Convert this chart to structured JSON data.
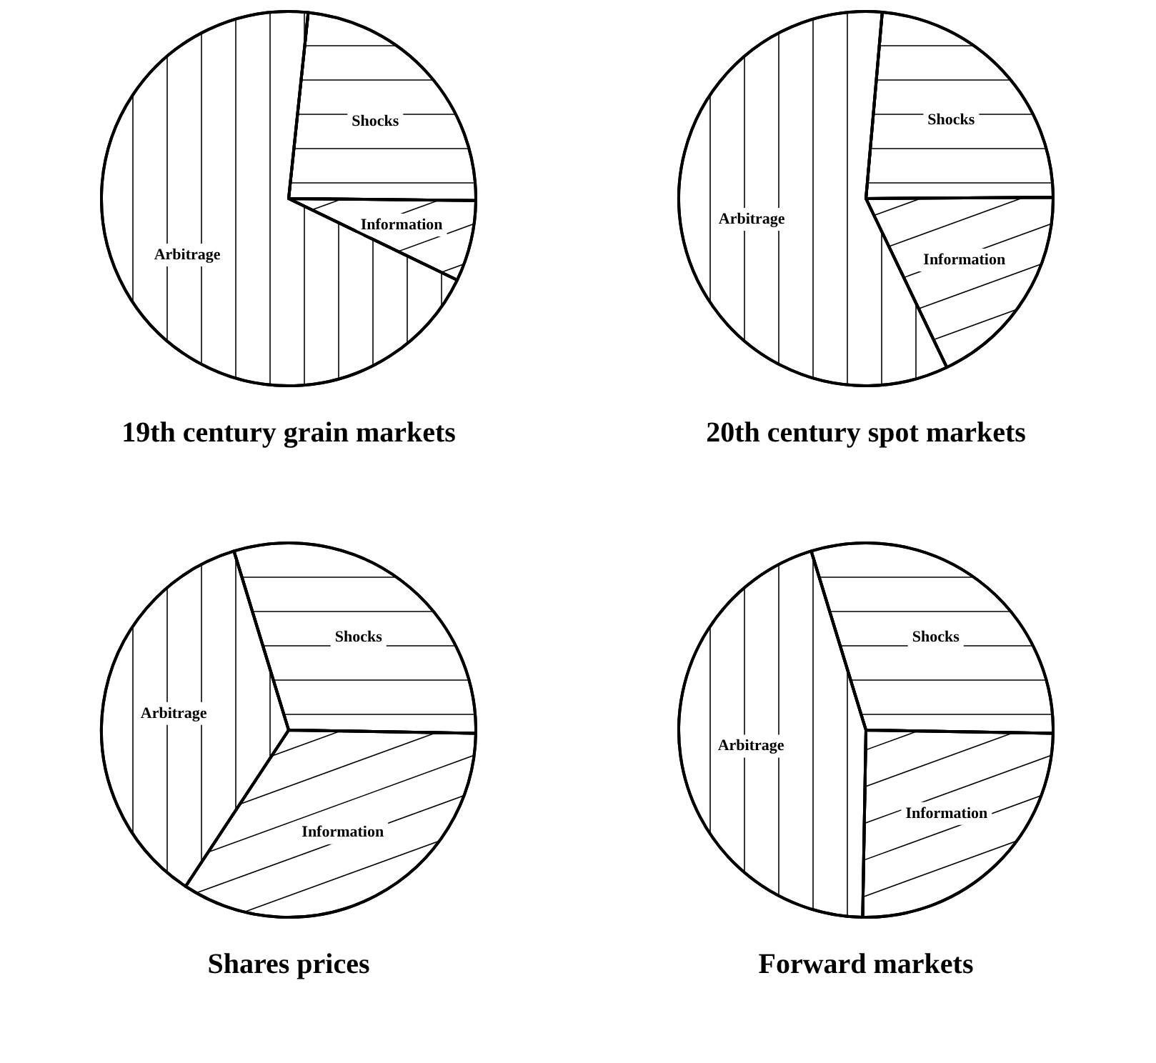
{
  "chart_data": [
    {
      "type": "pie",
      "title": "19th century grain markets",
      "categories": [
        "Shocks",
        "Information",
        "Arbitrage"
      ],
      "values": [
        23.5,
        7,
        69.5
      ],
      "colors": [
        "#ffffff",
        "#ffffff",
        "#ffffff"
      ]
    },
    {
      "type": "pie",
      "title": "20th century spot markets",
      "categories": [
        "Shocks",
        "Information",
        "Arbitrage"
      ],
      "values": [
        23.5,
        18,
        58.5
      ],
      "colors": [
        "#ffffff",
        "#ffffff",
        "#ffffff"
      ]
    },
    {
      "type": "pie",
      "title": "Shares prices",
      "categories": [
        "Shocks",
        "Information",
        "Arbitrage"
      ],
      "values": [
        30,
        34,
        36
      ],
      "colors": [
        "#ffffff",
        "#ffffff",
        "#ffffff"
      ]
    },
    {
      "type": "pie",
      "title": "Forward markets",
      "categories": [
        "Shocks",
        "Information",
        "Arbitrage"
      ],
      "values": [
        30,
        25,
        45
      ],
      "colors": [
        "#ffffff",
        "#ffffff",
        "#ffffff"
      ]
    }
  ]
}
